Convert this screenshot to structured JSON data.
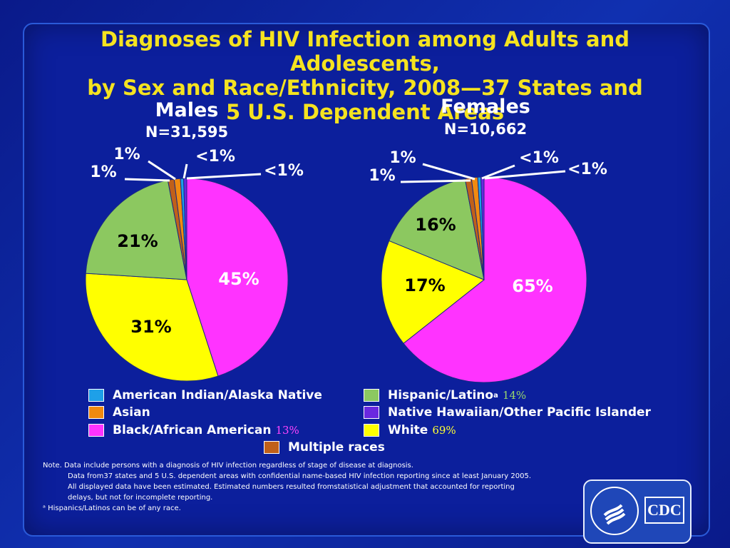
{
  "title_lines": [
    "Diagnoses of HIV Infection among Adults and Adolescents,",
    "by Sex and Race/Ethnicity,  2008—37 States and",
    "5 U.S. Dependent Areas"
  ],
  "colors": {
    "american_indian": "#1ea0e8",
    "asian": "#f08a10",
    "black": "#ff33ff",
    "hispanic": "#8cc860",
    "nhopi": "#6a28e0",
    "white": "#ffff00",
    "multiple": "#c0601a"
  },
  "legend": [
    {
      "key": "american_indian",
      "label": "American Indian/Alaska Native",
      "sup": "",
      "note": ""
    },
    {
      "key": "asian",
      "label": "Asian",
      "sup": "",
      "note": ""
    },
    {
      "key": "black",
      "label": "Black/African American",
      "sup": "",
      "note": "13%"
    },
    {
      "key": "hispanic",
      "label": "Hispanic/Latino",
      "sup": "a",
      "note": "14%"
    },
    {
      "key": "nhopi",
      "label": "Native Hawaiian/Other Pacific Islander",
      "sup": "",
      "note": ""
    },
    {
      "key": "white",
      "label": "White",
      "sup": "",
      "note": "69%"
    },
    {
      "key": "multiple",
      "label": "Multiple races",
      "sup": "",
      "note": ""
    }
  ],
  "notes": [
    "Note. Data include persons with a diagnosis of HIV infection regardless of stage of disease at diagnosis.",
    "Data from37 states and 5 U.S. dependent areas with confidential name-based HIV infection reporting since at least January 2005.",
    "All displayed data have been estimated. Estimated numbers resulted fromstatistical adjustment that accounted for reporting",
    "delays,  but not for incomplete reporting.",
    "ᵃ Hispanics/Latinos can be of any race."
  ],
  "logo_text": "CDC",
  "chart_data": [
    {
      "type": "pie",
      "title": "Males",
      "subtitle": "N=31,595",
      "slices": [
        {
          "key": "black",
          "label": "45%",
          "value": 45.0
        },
        {
          "key": "white",
          "label": "31%",
          "value": 31.0
        },
        {
          "key": "hispanic",
          "label": "21%",
          "value": 21.0
        },
        {
          "key": "multiple",
          "label": "1%",
          "value": 1.0
        },
        {
          "key": "asian",
          "label": "1%",
          "value": 1.0
        },
        {
          "key": "american_indian",
          "label": "<1%",
          "value": 0.5
        },
        {
          "key": "nhopi",
          "label": "<1%",
          "value": 0.5
        }
      ]
    },
    {
      "type": "pie",
      "title": "Females",
      "subtitle": "N=10,662",
      "slices": [
        {
          "key": "black",
          "label": "65%",
          "value": 65.0
        },
        {
          "key": "white",
          "label": "17%",
          "value": 17.0
        },
        {
          "key": "hispanic",
          "label": "16%",
          "value": 16.0
        },
        {
          "key": "multiple",
          "label": "1%",
          "value": 1.0
        },
        {
          "key": "asian",
          "label": "1%",
          "value": 1.0
        },
        {
          "key": "american_indian",
          "label": "<1%",
          "value": 0.5
        },
        {
          "key": "nhopi",
          "label": "<1%",
          "value": 0.5
        }
      ]
    }
  ]
}
